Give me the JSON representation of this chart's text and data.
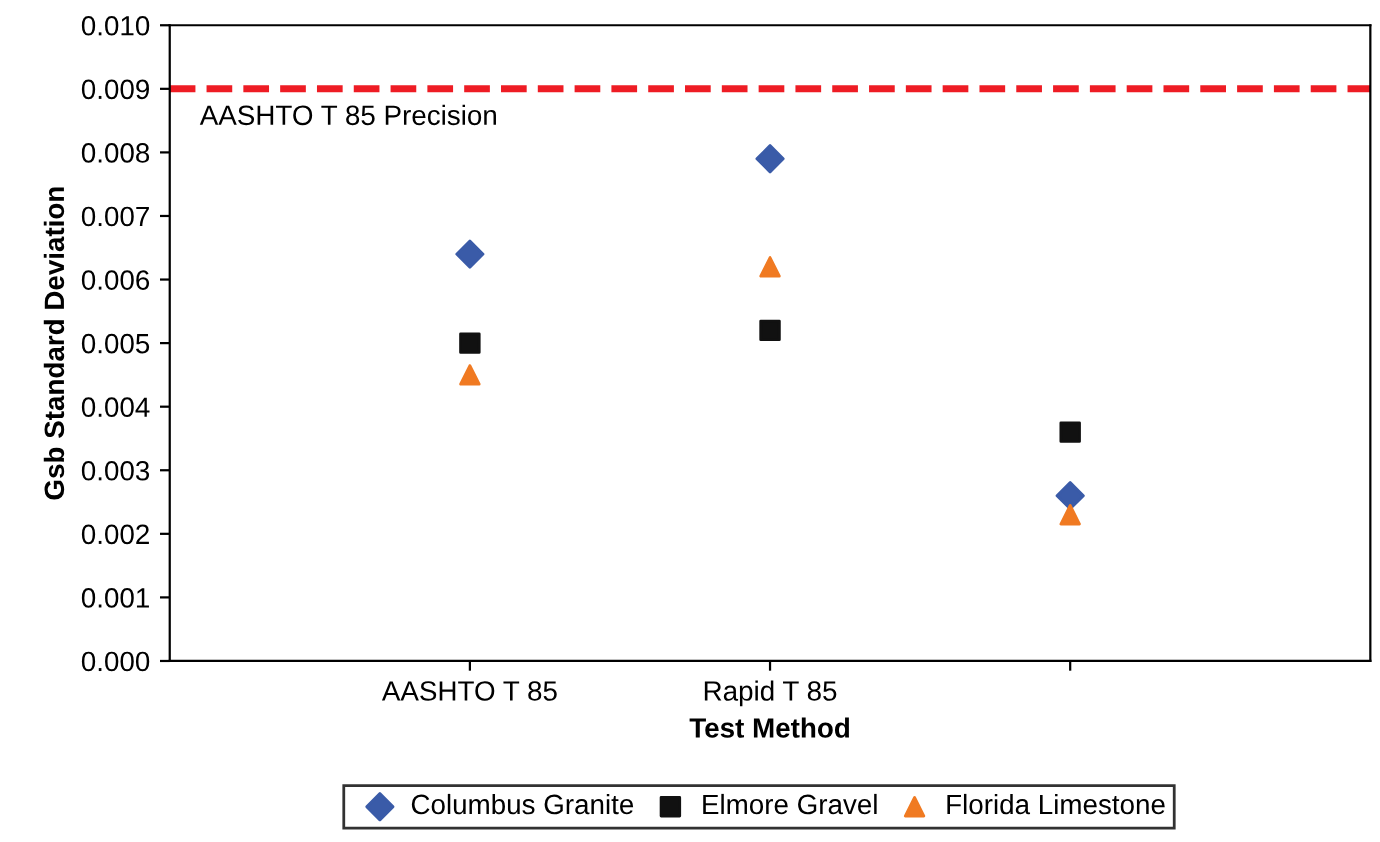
{
  "chart_data": {
    "type": "scatter",
    "xlabel": "Test Method",
    "ylabel": "Gsb Standard Deviation",
    "categories": [
      "AASHTO T 85",
      "Rapid T 85",
      null
    ],
    "series": [
      {
        "name": "Columbus Granite",
        "color": "#3a5ba8",
        "marker": "diamond",
        "values": [
          0.0064,
          0.0079,
          0.0026
        ]
      },
      {
        "name": "Elmore Gravel",
        "color": "#111111",
        "marker": "square",
        "values": [
          0.005,
          0.0052,
          0.0036
        ]
      },
      {
        "name": "Florida Limestone",
        "color": "#f07a22",
        "marker": "triangle",
        "values": [
          0.0045,
          0.0062,
          0.0023
        ]
      }
    ],
    "ylim": [
      0,
      0.01
    ],
    "yticks": [
      {
        "value": 0,
        "label": "0.000"
      },
      {
        "value": 0.001,
        "label": "0.001"
      },
      {
        "value": 0.002,
        "label": "0.002"
      },
      {
        "value": 0.003,
        "label": "0.003"
      },
      {
        "value": 0.004,
        "label": "0.004"
      },
      {
        "value": 0.005,
        "label": "0.005"
      },
      {
        "value": 0.006,
        "label": "0.006"
      },
      {
        "value": 0.007,
        "label": "0.007"
      },
      {
        "value": 0.008,
        "label": "0.008"
      },
      {
        "value": 0.009,
        "label": "0.009"
      },
      {
        "value": 0.01,
        "label": "0.010"
      }
    ],
    "ref_lines": [
      {
        "axis": "y",
        "value": 0.009,
        "label": "AASHTO T 85 Precision",
        "color": "#ee1c24",
        "line_style": "dashed"
      }
    ],
    "grid": false,
    "legend": "bottom"
  }
}
